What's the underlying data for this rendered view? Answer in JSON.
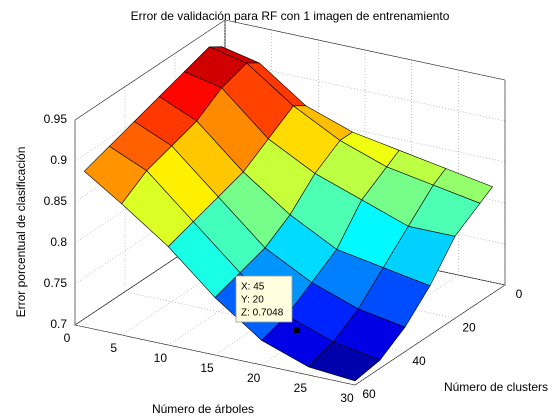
{
  "chart_data": {
    "type": "surface3d",
    "title": "Error de validación para RF con 1 imagen de entrenamiento",
    "x_label": "Número de árboles",
    "y_label": "Número de clusters",
    "z_label": "Error porcentual de clasificación",
    "x": [
      1,
      5,
      10,
      15,
      20,
      25,
      30
    ],
    "y": [
      5,
      10,
      20,
      30,
      40,
      50,
      60
    ],
    "z": [
      [
        0.93,
        0.94,
        0.93,
        0.92,
        0.91,
        0.9,
        0.89
      ],
      [
        0.92,
        0.93,
        0.92,
        0.9,
        0.89,
        0.88,
        0.86
      ],
      [
        0.88,
        0.89,
        0.87,
        0.85,
        0.84,
        0.83,
        0.82
      ],
      [
        0.86,
        0.86,
        0.84,
        0.81,
        0.79,
        0.78,
        0.77
      ],
      [
        0.85,
        0.84,
        0.82,
        0.78,
        0.76,
        0.74,
        0.73
      ],
      [
        0.84,
        0.83,
        0.8,
        0.77,
        0.74,
        0.72,
        0.71
      ],
      [
        0.83,
        0.82,
        0.8,
        0.76,
        0.73,
        0.71,
        0.705
      ]
    ],
    "colormap": "jet",
    "xlim": [
      0,
      30
    ],
    "xticks": [
      0,
      5,
      10,
      15,
      20,
      25,
      30
    ],
    "ylim": [
      0,
      60
    ],
    "yticks": [
      0,
      20,
      40,
      60
    ],
    "zlim": [
      0.7,
      0.95
    ],
    "zticks": [
      0.7,
      0.75,
      0.8,
      0.85,
      0.9,
      0.95
    ],
    "grid": true,
    "datatip": [
      "X: 45",
      "Y: 20",
      "Z: 0.7048"
    ]
  }
}
